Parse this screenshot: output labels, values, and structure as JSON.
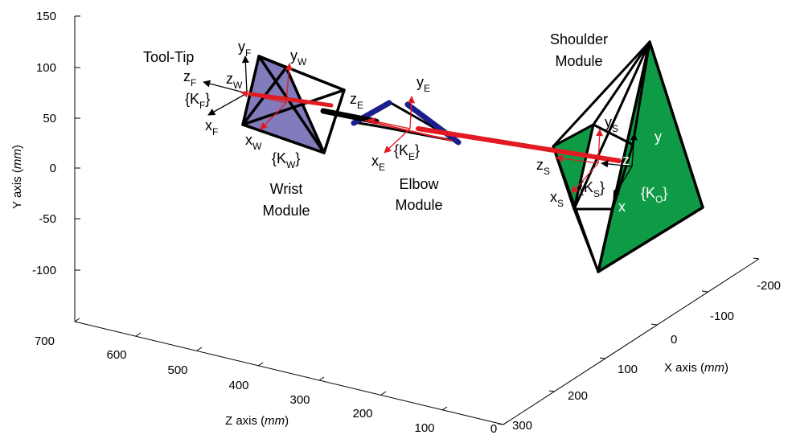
{
  "axes": {
    "y_label": {
      "pre": "Y axis (",
      "unit": "mm",
      "post": ")"
    },
    "z_label": {
      "pre": "Z axis (",
      "unit": "mm",
      "post": ")"
    },
    "x_label": {
      "pre": "X axis (",
      "unit": "mm",
      "post": ")"
    },
    "y_ticks": [
      "150",
      "100",
      "50",
      "0",
      "-50",
      "-100"
    ],
    "z_ticks": [
      "700",
      "600",
      "500",
      "400",
      "300",
      "200",
      "100",
      "0"
    ],
    "x_ticks": [
      "-200",
      "-100",
      "0",
      "100",
      "200",
      "300"
    ]
  },
  "modules": {
    "tool_tip": "Tool-Tip",
    "wrist": [
      "Wrist",
      "Module"
    ],
    "elbow": [
      "Elbow",
      "Module"
    ],
    "shoulder": [
      "Shoulder",
      "Module"
    ]
  },
  "frames": {
    "F": {
      "z": "z",
      "z_sub": "F",
      "y": "y",
      "y_sub": "F",
      "x": "x",
      "x_sub": "F",
      "k": "{K",
      "k_sub": "F",
      "k_close": "}"
    },
    "W": {
      "z": "z",
      "z_sub": "W",
      "y": "y",
      "y_sub": "W",
      "x": "x",
      "x_sub": "W",
      "k": "{K",
      "k_sub": "W",
      "k_close": "}"
    },
    "E": {
      "z": "z",
      "z_sub": "E",
      "y": "y",
      "y_sub": "E",
      "x": "x",
      "x_sub": "E",
      "k": "{K",
      "k_sub": "E",
      "k_close": "}"
    },
    "S": {
      "z": "z",
      "z_sub": "S",
      "y": "y",
      "y_sub": "S",
      "x": "x",
      "x_sub": "S",
      "k": "{K",
      "k_sub": "S",
      "k_close": "}"
    },
    "O": {
      "z": "z",
      "y": "y",
      "x": "x",
      "k": "{K",
      "k_sub": "O",
      "k_close": "}"
    }
  },
  "colors": {
    "wrist_fill": "#7b74b8",
    "shoulder_fill": "#0f9b45",
    "elbow_link": "#1c1e8c",
    "link_red": "#e21b22",
    "frame_red": "#e21b22"
  }
}
